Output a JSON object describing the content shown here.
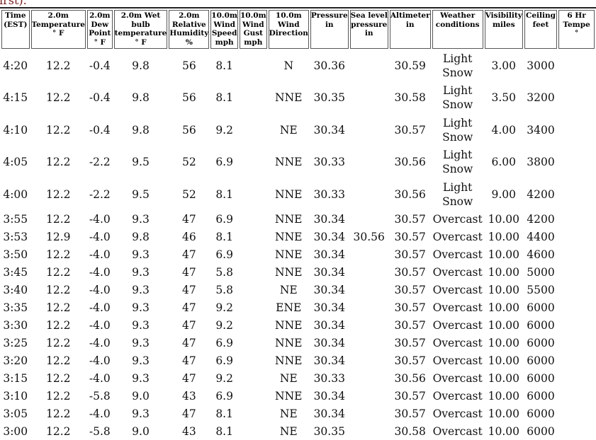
{
  "note": "irst).",
  "table": {
    "header": [
      [
        "Time",
        "(EST)"
      ],
      [
        "2.0m",
        "Temperature",
        "° F"
      ],
      [
        "2.0m",
        "Dew",
        "Point",
        "° F"
      ],
      [
        "2.0m Wet",
        "bulb",
        "temperature",
        "° F"
      ],
      [
        "2.0m",
        "Relative",
        "Humidity",
        "%"
      ],
      [
        "10.0m",
        "Wind",
        "Speed",
        "mph"
      ],
      [
        "10.0m",
        "Wind",
        "Gust",
        "mph"
      ],
      [
        "10.0m",
        "Wind",
        "Direction"
      ],
      [
        "Pressure",
        "in"
      ],
      [
        "Sea level",
        "pressure",
        "in"
      ],
      [
        "Altimeter",
        "in"
      ],
      [
        "Weather",
        "conditions"
      ],
      [
        "Visibility",
        "miles"
      ],
      [
        "Ceiling",
        "feet"
      ],
      [
        "6 Hr",
        "Tempe",
        "°"
      ]
    ],
    "rows": [
      [
        "4:20",
        "12.2",
        "-0.4",
        "9.8",
        "56",
        "8.1",
        null,
        "N",
        "30.36",
        null,
        "30.59",
        "Light Snow",
        "3.00",
        "3000",
        null
      ],
      [
        "4:15",
        "12.2",
        "-0.4",
        "9.8",
        "56",
        "8.1",
        null,
        "NNE",
        "30.35",
        null,
        "30.58",
        "Light Snow",
        "3.50",
        "3200",
        null
      ],
      [
        "4:10",
        "12.2",
        "-0.4",
        "9.8",
        "56",
        "9.2",
        null,
        "NE",
        "30.34",
        null,
        "30.57",
        "Light Snow",
        "4.00",
        "3400",
        null
      ],
      [
        "4:05",
        "12.2",
        "-2.2",
        "9.5",
        "52",
        "6.9",
        null,
        "NNE",
        "30.33",
        null,
        "30.56",
        "Light Snow",
        "6.00",
        "3800",
        null
      ],
      [
        "4:00",
        "12.2",
        "-2.2",
        "9.5",
        "52",
        "8.1",
        null,
        "NNE",
        "30.33",
        null,
        "30.56",
        "Light Snow",
        "9.00",
        "4200",
        null
      ],
      [
        "3:55",
        "12.2",
        "-4.0",
        "9.3",
        "47",
        "6.9",
        null,
        "NNE",
        "30.34",
        null,
        "30.57",
        "Overcast",
        "10.00",
        "4200",
        null
      ],
      [
        "3:53",
        "12.9",
        "-4.0",
        "9.8",
        "46",
        "8.1",
        null,
        "NNE",
        "30.34",
        "30.56",
        "30.57",
        "Overcast",
        "10.00",
        "4400",
        null
      ],
      [
        "3:50",
        "12.2",
        "-4.0",
        "9.3",
        "47",
        "6.9",
        null,
        "NNE",
        "30.34",
        null,
        "30.57",
        "Overcast",
        "10.00",
        "4600",
        null
      ],
      [
        "3:45",
        "12.2",
        "-4.0",
        "9.3",
        "47",
        "5.8",
        null,
        "NNE",
        "30.34",
        null,
        "30.57",
        "Overcast",
        "10.00",
        "5000",
        null
      ],
      [
        "3:40",
        "12.2",
        "-4.0",
        "9.3",
        "47",
        "5.8",
        null,
        "NE",
        "30.34",
        null,
        "30.57",
        "Overcast",
        "10.00",
        "5500",
        null
      ],
      [
        "3:35",
        "12.2",
        "-4.0",
        "9.3",
        "47",
        "9.2",
        null,
        "ENE",
        "30.34",
        null,
        "30.57",
        "Overcast",
        "10.00",
        "6000",
        null
      ],
      [
        "3:30",
        "12.2",
        "-4.0",
        "9.3",
        "47",
        "9.2",
        null,
        "NNE",
        "30.34",
        null,
        "30.57",
        "Overcast",
        "10.00",
        "6000",
        null
      ],
      [
        "3:25",
        "12.2",
        "-4.0",
        "9.3",
        "47",
        "6.9",
        null,
        "NNE",
        "30.34",
        null,
        "30.57",
        "Overcast",
        "10.00",
        "6000",
        null
      ],
      [
        "3:20",
        "12.2",
        "-4.0",
        "9.3",
        "47",
        "6.9",
        null,
        "NNE",
        "30.34",
        null,
        "30.57",
        "Overcast",
        "10.00",
        "6000",
        null
      ],
      [
        "3:15",
        "12.2",
        "-4.0",
        "9.3",
        "47",
        "9.2",
        null,
        "NE",
        "30.33",
        null,
        "30.56",
        "Overcast",
        "10.00",
        "6000",
        null
      ],
      [
        "3:10",
        "12.2",
        "-5.8",
        "9.0",
        "43",
        "6.9",
        null,
        "NNE",
        "30.34",
        null,
        "30.57",
        "Overcast",
        "10.00",
        "6000",
        null
      ],
      [
        "3:05",
        "12.2",
        "-4.0",
        "9.3",
        "47",
        "8.1",
        null,
        "NE",
        "30.34",
        null,
        "30.57",
        "Overcast",
        "10.00",
        "6000",
        null
      ],
      [
        "3:00",
        "12.2",
        "-5.8",
        "9.0",
        "43",
        "8.1",
        null,
        "NE",
        "30.35",
        null,
        "30.58",
        "Overcast",
        "10.00",
        "6000",
        null
      ]
    ]
  }
}
